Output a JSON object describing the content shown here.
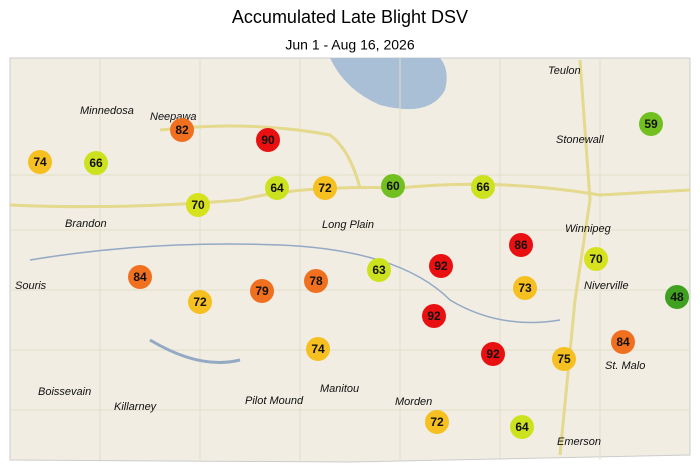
{
  "title": "Accumulated Late Blight DSV",
  "subtitle": "Jun 1 - Aug 16, 2026",
  "towns": [
    "Teulon",
    "Minnedosa",
    "Neepawa",
    "Stonewall",
    "Winnipeg",
    "Brandon",
    "Long Plain",
    "Souris",
    "Niverville",
    "St. Malo",
    "Boissevain",
    "Killarney",
    "Pilot Mound",
    "Manitou",
    "Morden",
    "Emerson"
  ],
  "stations": [
    {
      "value": 82,
      "color": "#f07020"
    },
    {
      "value": 74,
      "color": "#f5c020"
    },
    {
      "value": 66,
      "color": "#cde21e"
    },
    {
      "value": 90,
      "color": "#e81010"
    },
    {
      "value": 70,
      "color": "#d6e21e"
    },
    {
      "value": 64,
      "color": "#cde21e"
    },
    {
      "value": 72,
      "color": "#f5c020"
    },
    {
      "value": 60,
      "color": "#72c020"
    },
    {
      "value": 66,
      "color": "#cde21e"
    },
    {
      "value": 86,
      "color": "#e81010"
    },
    {
      "value": 59,
      "color": "#72c020"
    },
    {
      "value": 70,
      "color": "#d6e21e"
    },
    {
      "value": 48,
      "color": "#40a020"
    },
    {
      "value": 84,
      "color": "#f07020"
    },
    {
      "value": 72,
      "color": "#f5c020"
    },
    {
      "value": 79,
      "color": "#f07020"
    },
    {
      "value": 78,
      "color": "#f07020"
    },
    {
      "value": 63,
      "color": "#cde21e"
    },
    {
      "value": 92,
      "color": "#e81010"
    },
    {
      "value": 73,
      "color": "#f5c020"
    },
    {
      "value": 92,
      "color": "#e81010"
    },
    {
      "value": 74,
      "color": "#f5c020"
    },
    {
      "value": 92,
      "color": "#e81010"
    },
    {
      "value": 75,
      "color": "#f5c020"
    },
    {
      "value": 84,
      "color": "#f07020"
    },
    {
      "value": 72,
      "color": "#f5c020"
    },
    {
      "value": 64,
      "color": "#cde21e"
    }
  ]
}
